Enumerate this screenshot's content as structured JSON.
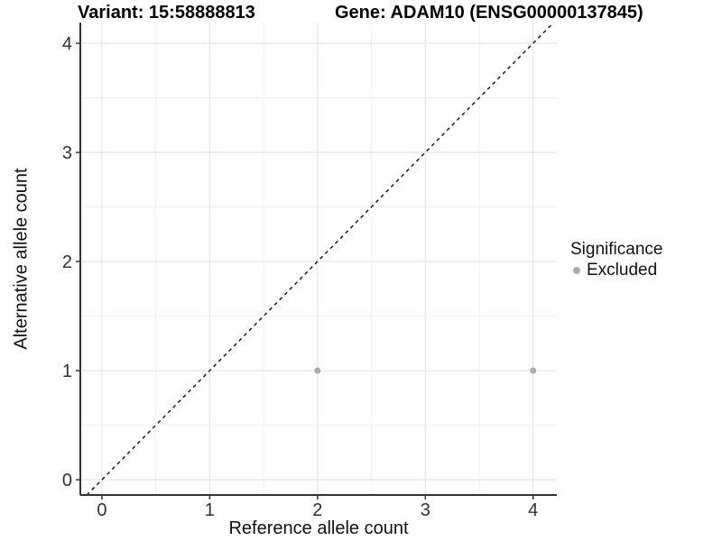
{
  "title": {
    "variant": "Variant: 15:58888813",
    "gene": "Gene: ADAM10 (ENSG00000137845)"
  },
  "axes": {
    "x_label": "Reference allele count",
    "y_label": "Alternative allele count"
  },
  "legend": {
    "title": "Significance",
    "items": [
      {
        "label": "Excluded",
        "color": "#AAAAAA"
      }
    ]
  },
  "colors": {
    "background": "#FFFFFF",
    "major_grid": "#E4E4E4",
    "minor_grid": "#F1F1F1",
    "axis_line": "#333333",
    "identity_line": "#1A1A1A",
    "excluded_point": "#AAAAAA",
    "tick_text": "#303030"
  },
  "chart_data": {
    "type": "scatter",
    "title": "Variant: 15:58888813   Gene: ADAM10 (ENSG00000137845)",
    "xlabel": "Reference allele count",
    "ylabel": "Alternative allele count",
    "xlim": [
      -0.2,
      4.22
    ],
    "ylim": [
      -0.14,
      4.19
    ],
    "xticks": [
      0,
      1,
      2,
      3,
      4
    ],
    "yticks": [
      0,
      1,
      2,
      3,
      4
    ],
    "grid": true,
    "minor_grid": true,
    "legend_position": "right",
    "series": [
      {
        "name": "Excluded",
        "color": "#AAAAAA",
        "points": [
          [
            2,
            1
          ],
          [
            4,
            1
          ]
        ]
      }
    ],
    "reference_line": {
      "type": "identity",
      "equation": "y = x",
      "style": "dashed",
      "color": "#1A1A1A"
    }
  }
}
